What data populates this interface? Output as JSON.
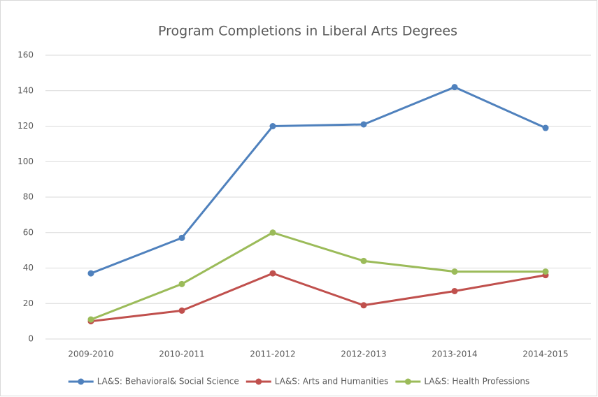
{
  "chart_data": {
    "type": "line",
    "title": "Program Completions in Liberal Arts Degrees",
    "categories": [
      "2009-2010",
      "2010-2011",
      "2011-2012",
      "2012-2013",
      "2013-2014",
      "2014-2015"
    ],
    "series": [
      {
        "name": "LA&S: Behavioral& Social Science",
        "color": "#4f81bd",
        "values": [
          37,
          57,
          120,
          121,
          142,
          119
        ]
      },
      {
        "name": "LA&S: Arts and Humanities",
        "color": "#c0504d",
        "values": [
          10,
          16,
          37,
          19,
          27,
          36
        ]
      },
      {
        "name": "LA&S: Health Professions",
        "color": "#9bbb59",
        "values": [
          11,
          31,
          60,
          44,
          38,
          38
        ]
      }
    ],
    "ylim": [
      0,
      160
    ],
    "yticks": [
      0,
      20,
      40,
      60,
      80,
      100,
      120,
      140,
      160
    ],
    "grid": true,
    "legend": "bottom"
  }
}
